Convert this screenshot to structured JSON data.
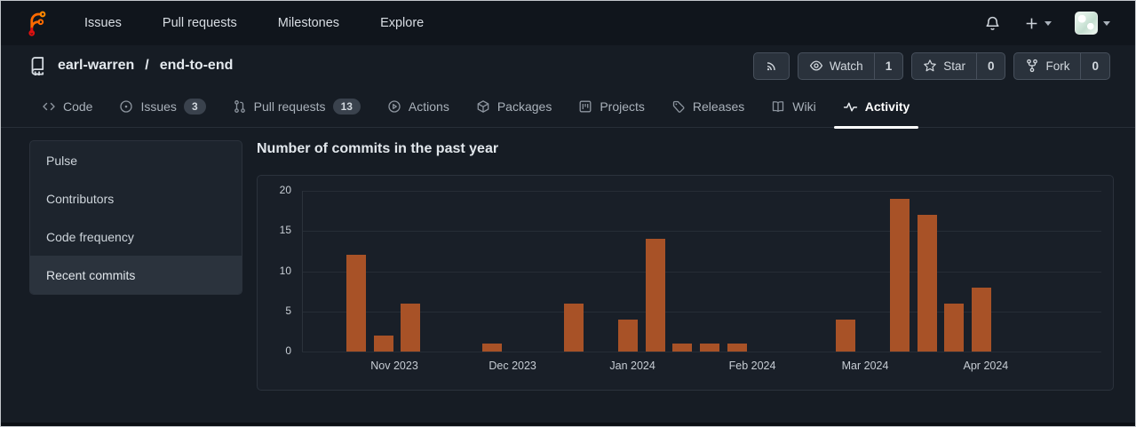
{
  "navbar": {
    "brand": "forgejo-logo",
    "links": [
      {
        "label": "Issues"
      },
      {
        "label": "Pull requests"
      },
      {
        "label": "Milestones"
      },
      {
        "label": "Explore"
      }
    ]
  },
  "repo": {
    "owner": "earl-warren",
    "separator": "/",
    "name": "end-to-end",
    "actions": {
      "watch": {
        "label": "Watch",
        "count": "1"
      },
      "star": {
        "label": "Star",
        "count": "0"
      },
      "fork": {
        "label": "Fork",
        "count": "0"
      }
    }
  },
  "tabs": [
    {
      "label": "Code",
      "active": false
    },
    {
      "label": "Issues",
      "badge": "3",
      "active": false
    },
    {
      "label": "Pull requests",
      "badge": "13",
      "active": false
    },
    {
      "label": "Actions",
      "active": false
    },
    {
      "label": "Packages",
      "active": false
    },
    {
      "label": "Projects",
      "active": false
    },
    {
      "label": "Releases",
      "active": false
    },
    {
      "label": "Wiki",
      "active": false
    },
    {
      "label": "Activity",
      "active": true
    }
  ],
  "sidebar": {
    "items": [
      {
        "label": "Pulse",
        "selected": false
      },
      {
        "label": "Contributors",
        "selected": false
      },
      {
        "label": "Code frequency",
        "selected": false
      },
      {
        "label": "Recent commits",
        "selected": true
      }
    ]
  },
  "main": {
    "title": "Number of commits in the past year"
  },
  "chart_data": {
    "type": "bar",
    "title": "Number of commits in the past year",
    "x_unit": "week",
    "weeks": [
      0,
      0,
      12,
      2,
      6,
      0,
      0,
      1,
      0,
      0,
      6,
      0,
      4,
      14,
      1,
      1,
      1,
      0,
      0,
      0,
      4,
      0,
      19,
      17,
      6,
      8,
      0,
      0,
      0,
      0
    ],
    "month_labels": [
      {
        "label": "Nov 2023",
        "week": 3.4
      },
      {
        "label": "Dec 2023",
        "week": 7.75
      },
      {
        "label": "Jan 2024",
        "week": 12.16
      },
      {
        "label": "Feb 2024",
        "week": 16.57
      },
      {
        "label": "Mar 2024",
        "week": 20.72
      },
      {
        "label": "Apr 2024",
        "week": 25.16
      }
    ],
    "y_ticks": [
      0,
      5,
      10,
      15,
      20
    ],
    "y_max": 20,
    "grid": true,
    "legend": "none",
    "bar_color": "#a85227",
    "grid_color": "#262d36"
  },
  "colors": {
    "page_bg": "#161c24",
    "navbar_bg": "#10151c",
    "card_bg": "#1d242d",
    "chart_card_bg": "#191f28",
    "accent_orange": "#ff6600",
    "accent_red": "#e01010",
    "bar": "#a85227",
    "active_tab_underline": "#ffffff"
  }
}
